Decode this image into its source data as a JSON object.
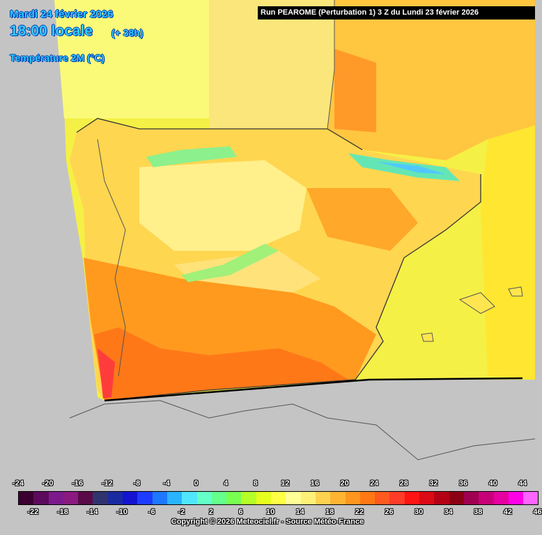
{
  "header": {
    "date": "Mardi 24 février 2026",
    "time": "18:00 locale",
    "lead": "(+ 38h)",
    "parameter": "Température 2M (°C)",
    "run": "Run PEAROME (Perturbation 1) 3 Z du Lundi 23 février 2026"
  },
  "legend": {
    "top_labels": [
      "-24",
      "-20",
      "-16",
      "-12",
      "-8",
      "-4",
      "0",
      "4",
      "8",
      "12",
      "16",
      "20",
      "24",
      "28",
      "32",
      "36",
      "40",
      "44"
    ],
    "bottom_labels": [
      "-22",
      "-18",
      "-14",
      "-10",
      "-6",
      "-2",
      "2",
      "6",
      "10",
      "14",
      "18",
      "22",
      "26",
      "30",
      "34",
      "38",
      "42",
      "46"
    ],
    "colors": [
      "#3c0030",
      "#5c0a5c",
      "#7c1a8c",
      "#8a1a80",
      "#5a0a46",
      "#30346c",
      "#1a2aa0",
      "#1414d0",
      "#1e3cff",
      "#1e78ff",
      "#2ab4ff",
      "#50e6ff",
      "#64ffc8",
      "#64ff8c",
      "#78ff50",
      "#b4ff28",
      "#e6ff1e",
      "#ffff46",
      "#ffff96",
      "#fff078",
      "#ffd250",
      "#ffb432",
      "#ff961e",
      "#ff7814",
      "#ff5a1e",
      "#ff3c28",
      "#ff1414",
      "#dc0a14",
      "#b40014",
      "#8c0014",
      "#a00050",
      "#c80078",
      "#e600a0",
      "#ff00e6",
      "#ff64ff"
    ],
    "copyright": "Copyright © 2026 Meteociel.fr - Source Météo-France"
  }
}
